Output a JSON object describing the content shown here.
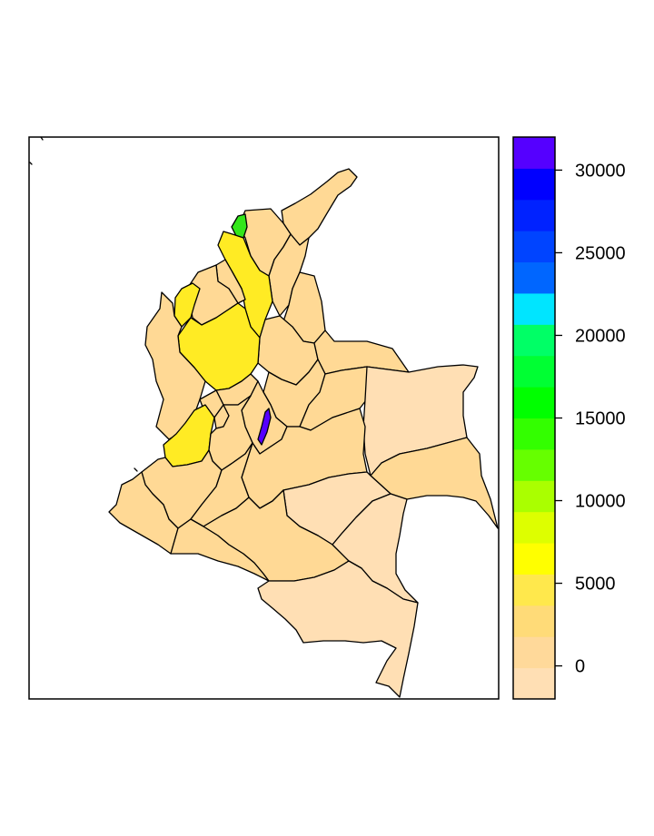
{
  "colorbar": {
    "tick_labels": [
      "0",
      "5000",
      "10000",
      "15000",
      "20000",
      "25000",
      "30000"
    ],
    "tick_values": [
      0,
      5000,
      10000,
      15000,
      20000,
      25000,
      30000
    ],
    "range": [
      -2000,
      32000
    ],
    "colors": [
      "#FFDFB4",
      "#FFD99A",
      "#FFDB78",
      "#FFE84C",
      "#FFFF00",
      "#DDFF00",
      "#AAFF00",
      "#66FF00",
      "#33FF00",
      "#00FF00",
      "#00FF33",
      "#00FF66",
      "#00E5FF",
      "#0066FF",
      "#0044FF",
      "#0022FF",
      "#0000FF",
      "#5500FF"
    ]
  },
  "map": {
    "fill_levels": {
      "low": "#FFDFB4",
      "base": "#FFD995",
      "yellow": "#FFEB24",
      "green": "#33E61A",
      "capital": "#5500FF"
    }
  }
}
